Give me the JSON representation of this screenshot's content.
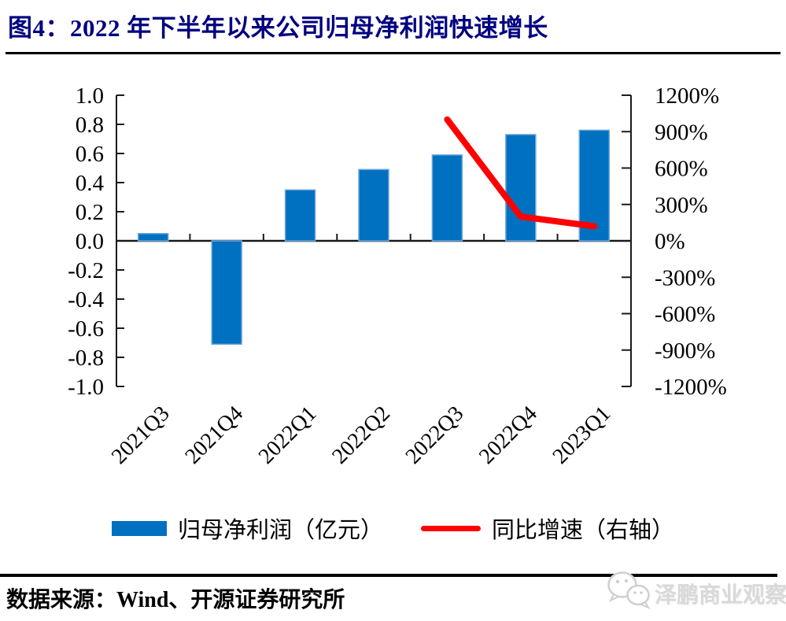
{
  "page": {
    "title": "图4：2022 年下半年以来公司归母净利润快速增长",
    "source": "数据来源：Wind、开源证券研究所",
    "watermark": "泽鹏商业观察"
  },
  "colors": {
    "bar_fill": "#0070C0",
    "bar_edge": "#6FA8DC",
    "line_red": "#FF0000",
    "title_navy": "#000080",
    "axis_black": "#1a1a1a",
    "watermark_gray": "#d9d9d9"
  },
  "legend": {
    "items": [
      {
        "label": "归母净利润（亿元）",
        "swatch": "bar",
        "color": "#0070C0"
      },
      {
        "label": "同比增速（右轴）",
        "swatch": "line",
        "color": "#FF0000"
      }
    ]
  },
  "chart_data": {
    "type": "bar",
    "title": "2022 年下半年以来公司归母净利润快速增长",
    "categories": [
      "2021Q3",
      "2021Q4",
      "2022Q1",
      "2022Q2",
      "2022Q3",
      "2022Q4",
      "2023Q1"
    ],
    "series": [
      {
        "name": "归母净利润（亿元）",
        "chart": "bar",
        "axis": "left",
        "color": "#0070C0",
        "values": [
          0.05,
          -0.71,
          0.35,
          0.49,
          0.59,
          0.73,
          0.76
        ]
      },
      {
        "name": "同比增速（右轴）",
        "chart": "line",
        "axis": "right",
        "color": "#FF0000",
        "values": [
          null,
          null,
          null,
          null,
          1000,
          200,
          120
        ]
      }
    ],
    "left_axis": {
      "min": -1.0,
      "max": 1.0,
      "step": 0.2,
      "tick_labels": [
        "1.0",
        "0.8",
        "0.6",
        "0.4",
        "0.2",
        "0.0",
        "-0.2",
        "-0.4",
        "-0.6",
        "-0.8",
        "-1.0"
      ]
    },
    "right_axis": {
      "min": -1200,
      "max": 1200,
      "step": 300,
      "tick_labels": [
        "1200%",
        "900%",
        "600%",
        "300%",
        "0%",
        "-300%",
        "-600%",
        "-900%",
        "-1200%"
      ]
    },
    "grid": false,
    "legend_position": "bottom",
    "xlabel": "",
    "ylabel": ""
  }
}
